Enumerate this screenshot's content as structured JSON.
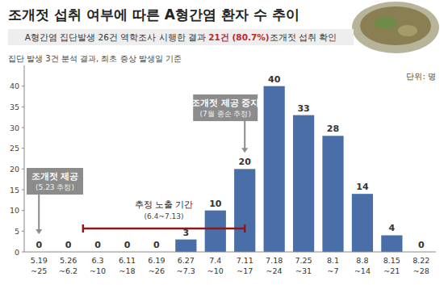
{
  "chart_data": {
    "type": "bar",
    "title": "조개젓 섭취 여부에 따른 A형간염 환자 수 추이",
    "subtitle": "A형간염 집단발생 26건 역학조사 시행한 결과 21건 (80.7%)조개젓 섭취 확인",
    "caption": "집단 발생 3건 분석 결과, 최초 증상 발생일 기준",
    "y_label": "단위: 명",
    "categories": [
      "5.19\n~25",
      "5.26\n~6.2",
      "6.3\n~10",
      "6.11\n~18",
      "6.19\n~26",
      "6.27\n~7.3",
      "7.4\n~10",
      "7.11\n~17",
      "7.18\n~24",
      "7.25\n~31",
      "8.1\n~7",
      "8.8\n~14",
      "8.15\n~21",
      "8.22\n~28"
    ],
    "values": [
      0,
      0,
      0,
      0,
      0,
      3,
      10,
      20,
      40,
      33,
      28,
      14,
      4,
      0
    ],
    "color": "#4a6ea8",
    "ylim": [
      0,
      45
    ],
    "yticks": [
      0,
      5,
      10,
      15,
      20,
      25,
      30,
      35,
      40
    ],
    "grid": false,
    "data_labels": true,
    "annotations": [
      {
        "text": "조개젓 제공",
        "detail": "(5.23 추정)"
      },
      {
        "text": "추정 노출 기간",
        "detail": "(6.4~7.13)"
      },
      {
        "text": "조개젓 제공 중지",
        "detail": "(7월 중순 추정)"
      }
    ]
  }
}
